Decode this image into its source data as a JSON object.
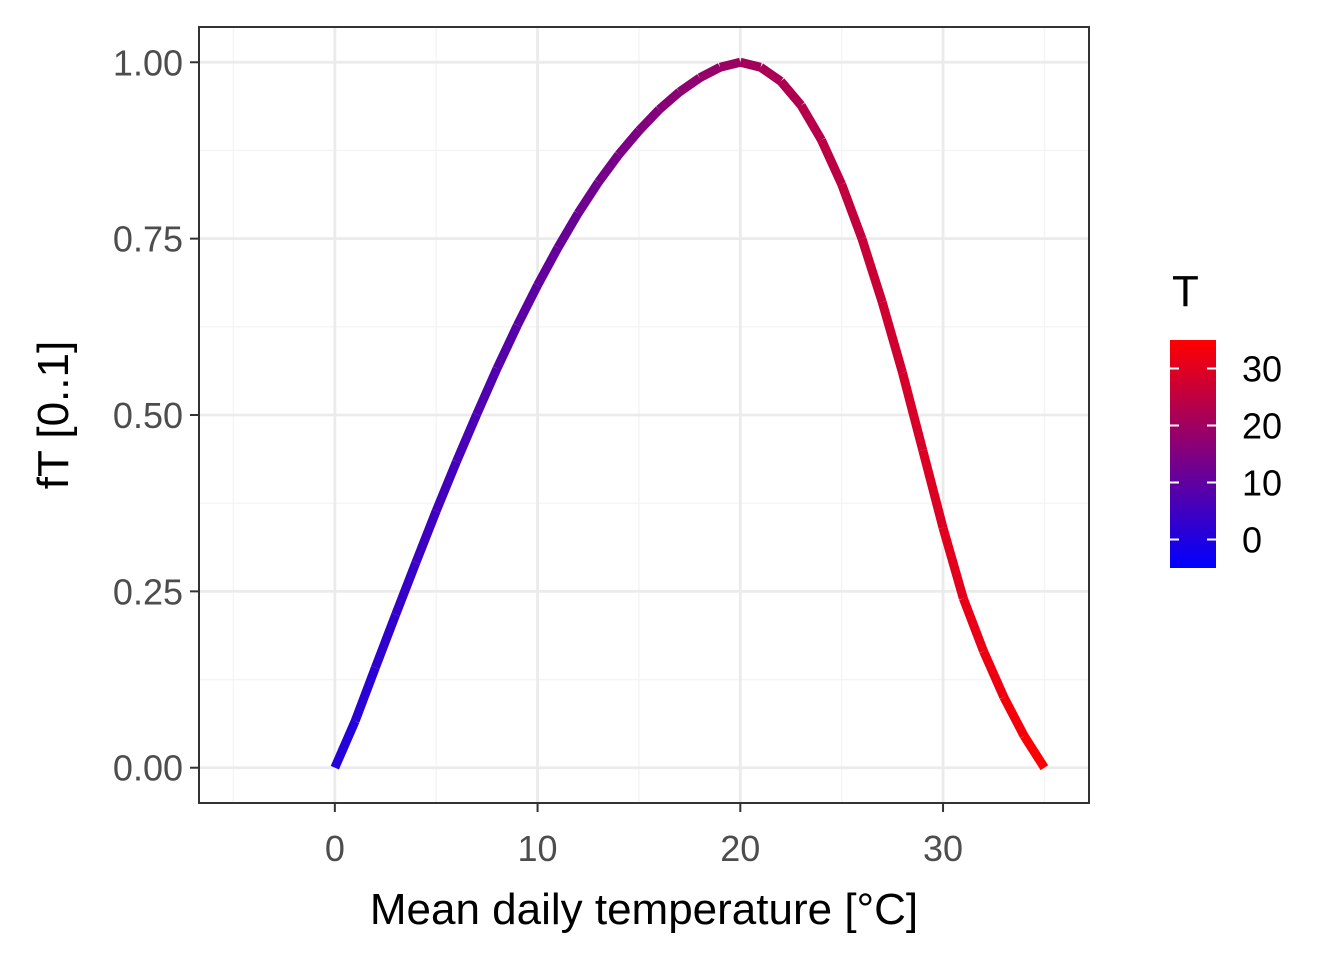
{
  "chart_data": {
    "type": "line",
    "title": "",
    "xlabel": "Mean daily temperature [°C]",
    "ylabel": "fT [0..1]",
    "xlim": [
      -6.7,
      37.2
    ],
    "ylim": [
      -0.05,
      1.05
    ],
    "x_ticks": [
      0,
      10,
      20,
      30
    ],
    "x_tick_labels": [
      "0",
      "10",
      "20",
      "30"
    ],
    "y_ticks": [
      0,
      0.25,
      0.5,
      0.75,
      1.0
    ],
    "y_tick_labels": [
      "0.00",
      "0.25",
      "0.50",
      "0.75",
      "1.00"
    ],
    "grid": true,
    "series": [
      {
        "x": [
          0,
          1,
          2,
          3,
          4,
          5,
          6,
          7,
          8,
          9,
          10,
          11,
          12,
          13,
          14,
          15,
          16,
          17,
          18,
          19,
          20,
          21,
          22,
          23,
          24,
          25,
          26,
          27,
          28,
          29,
          30,
          31,
          32,
          33,
          34,
          35
        ],
        "y": [
          0.0,
          0.066,
          0.142,
          0.217,
          0.291,
          0.364,
          0.434,
          0.501,
          0.566,
          0.627,
          0.684,
          0.737,
          0.786,
          0.83,
          0.869,
          0.903,
          0.933,
          0.958,
          0.978,
          0.993,
          1.0,
          0.993,
          0.973,
          0.939,
          0.89,
          0.827,
          0.75,
          0.66,
          0.56,
          0.45,
          0.34,
          0.24,
          0.165,
          0.1,
          0.045,
          0.0
        ],
        "color_by": "T"
      }
    ],
    "legend": {
      "title": "T",
      "placement": "right",
      "type": "colorbar",
      "range": [
        -5,
        35
      ],
      "ticks": [
        0,
        10,
        20,
        30
      ],
      "tick_labels": [
        "0",
        "10",
        "20",
        "30"
      ],
      "low_color": "#0000ff",
      "high_color": "#ff0000"
    },
    "colors": {
      "panel_border": "#333333",
      "grid_major": "#ebebeb",
      "grid_minor": "#f4f4f4",
      "tick_text": "#4d4d4d"
    }
  }
}
